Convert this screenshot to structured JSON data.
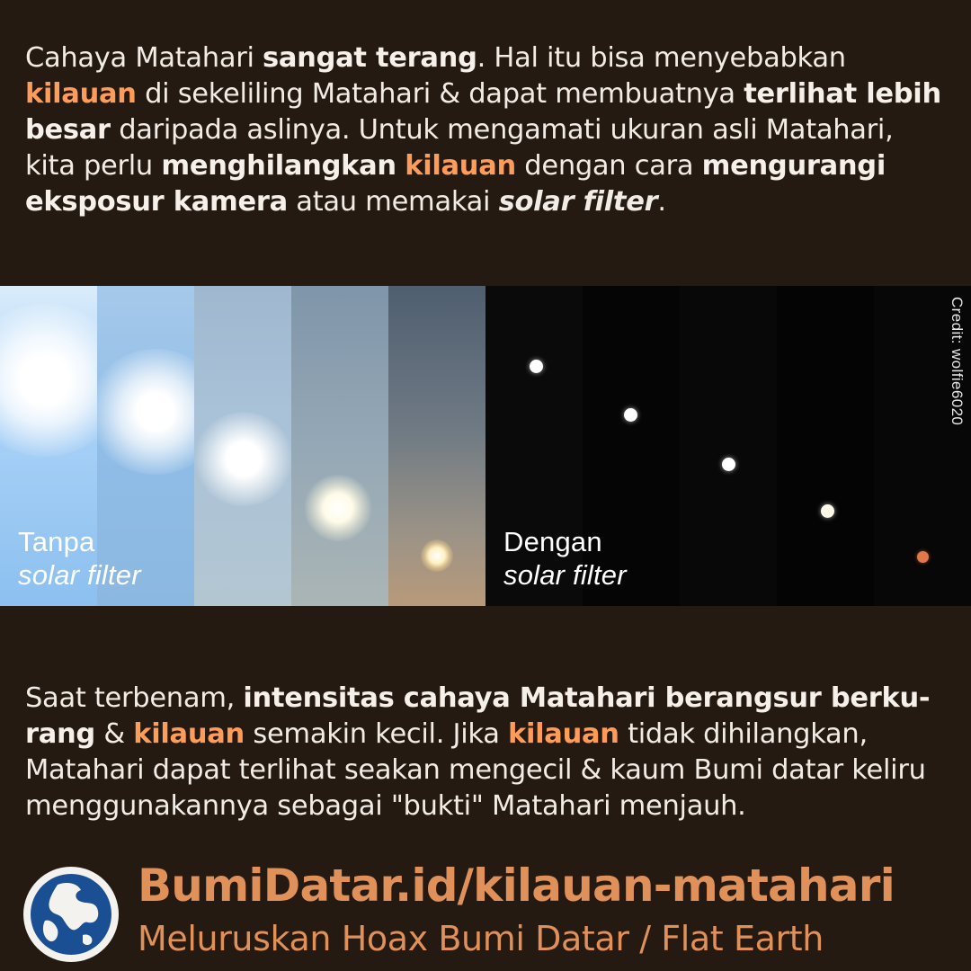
{
  "intro": {
    "s1": "Cahaya Matahari ",
    "s2": "sangat terang",
    "s3": ". Hal itu bisa menyebabkan ",
    "s4": "kilauan",
    "s5": " di sekeliling Matahari & dapat membuatnya ",
    "s6": "terlihat lebih besar",
    "s7": " daripada aslinya. Untuk mengamati ukuran asli Matahari, kita perlu ",
    "s8": "menghilangkan",
    "s9": " ",
    "s10": "kilauan",
    "s11": " dengan cara ",
    "s12": "mengurangi eksposur kamera",
    "s13": " atau memakai ",
    "s14": "solar filter",
    "s15": "."
  },
  "photo": {
    "left_caption_line1": "Tanpa",
    "left_caption_line2": "solar filter",
    "right_caption_line1": "Dengan",
    "right_caption_line2": "solar filter",
    "credit": "Credit: wolfie6020"
  },
  "outro": {
    "s1": "Saat terbenam, ",
    "s2": "intensitas cahaya Matahari berangsur berku-rang",
    "s3": " & ",
    "s4": "kilauan",
    "s5": " semakin kecil. Jika ",
    "s6": "kilauan",
    "s7": " tidak dihilangkan, Matahari dapat terlihat seakan mengecil & kaum Bumi datar keliru menggunakannya sebagai \"bukti\" Matahari menjauh."
  },
  "footer": {
    "url": "BumiDatar.id/kilauan-matahari",
    "tagline": "Meluruskan Hoax Bumi Datar / Flat Earth"
  },
  "colors": {
    "background": "#251a12",
    "highlight": "#ff9c5a",
    "footer": "#e0915a"
  }
}
